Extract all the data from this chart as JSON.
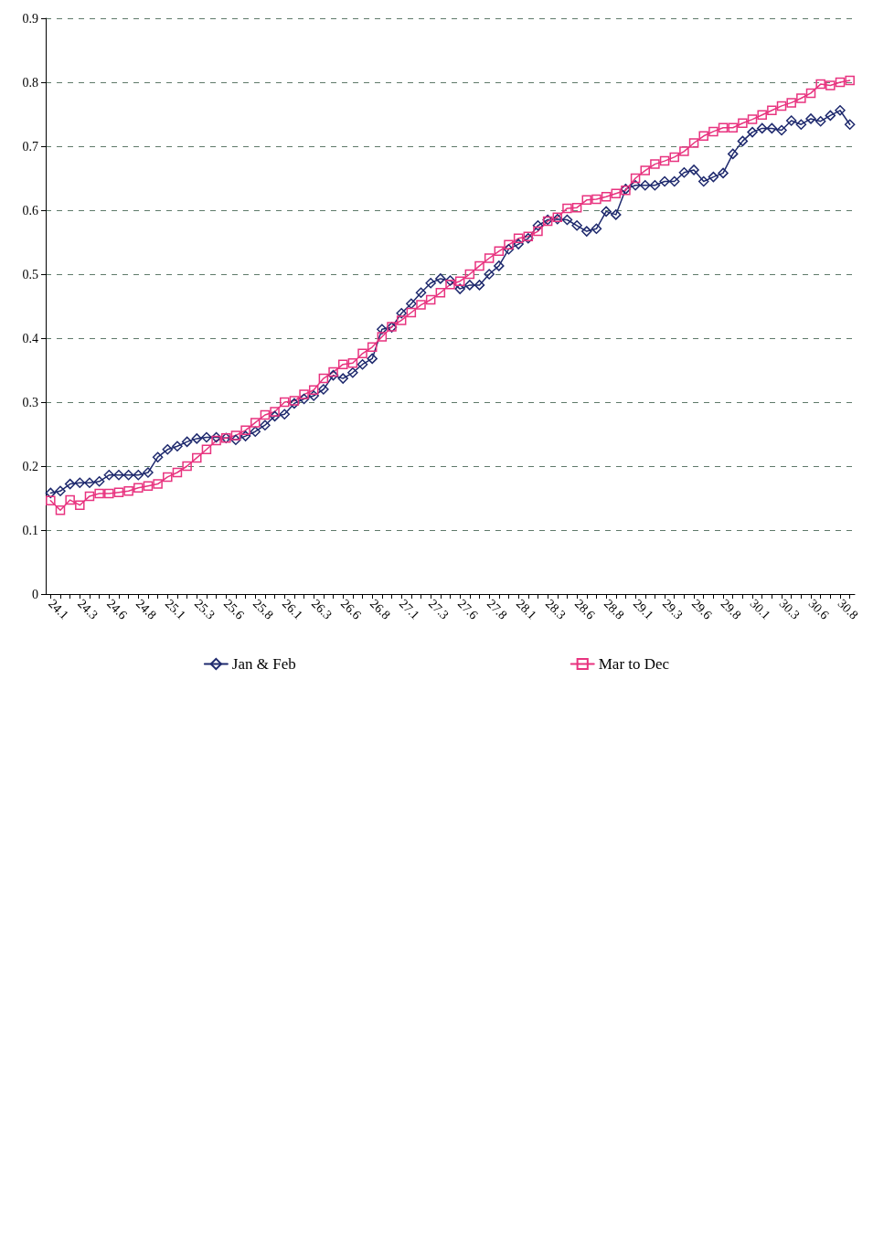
{
  "chart_data": {
    "type": "line",
    "categories": [
      "24.1",
      null,
      null,
      "24.3",
      null,
      null,
      "24.6",
      null,
      null,
      "24.8",
      null,
      null,
      "25.1",
      null,
      null,
      "25.3",
      null,
      null,
      "25.6",
      null,
      null,
      "25.8",
      null,
      null,
      "26.1",
      null,
      null,
      "26.3",
      null,
      null,
      "26.6",
      null,
      null,
      "26.8",
      null,
      null,
      "27.1",
      null,
      null,
      "27.3",
      null,
      null,
      "27.6",
      null,
      null,
      "27.8",
      null,
      null,
      "28.1",
      null,
      null,
      "28.3",
      null,
      null,
      "28.6",
      null,
      null,
      "28.8",
      null,
      null,
      "29.1",
      null,
      null,
      "29.3",
      null,
      null,
      "29.6",
      null,
      null,
      "29.8",
      null,
      null,
      "30.1",
      null,
      null,
      "30.3",
      null,
      null,
      "30.6",
      null,
      null,
      "30.8",
      null
    ],
    "series": [
      {
        "name": "Jan & Feb",
        "color": "#1f2a6e",
        "marker": "diamond",
        "values": [
          0.158,
          0.161,
          0.172,
          0.174,
          0.174,
          0.176,
          0.186,
          0.186,
          0.186,
          0.186,
          0.19,
          0.214,
          0.226,
          0.231,
          0.238,
          0.243,
          0.245,
          0.245,
          0.244,
          0.241,
          0.247,
          0.254,
          0.264,
          0.278,
          0.281,
          0.298,
          0.305,
          0.31,
          0.32,
          0.342,
          0.337,
          0.346,
          0.359,
          0.368,
          0.414,
          0.417,
          0.439,
          0.454,
          0.471,
          0.486,
          0.493,
          0.49,
          0.477,
          0.483,
          0.483,
          0.5,
          0.513,
          0.539,
          0.547,
          0.556,
          0.576,
          0.585,
          0.586,
          0.585,
          0.576,
          0.567,
          0.571,
          0.598,
          0.593,
          0.633,
          0.639,
          0.639,
          0.639,
          0.645,
          0.645,
          0.659,
          0.663,
          0.645,
          0.652,
          0.658,
          0.688,
          0.708,
          0.722,
          0.728,
          0.728,
          0.725,
          0.74,
          0.734,
          0.743,
          0.739,
          0.748,
          0.756,
          0.734
        ]
      },
      {
        "name": "Mar to Dec",
        "color": "#e8337f",
        "marker": "square",
        "values": [
          0.146,
          0.131,
          0.147,
          0.139,
          0.153,
          0.157,
          0.157,
          0.159,
          0.161,
          0.166,
          0.169,
          0.172,
          0.183,
          0.19,
          0.2,
          0.213,
          0.226,
          0.24,
          0.244,
          0.248,
          0.256,
          0.268,
          0.28,
          0.285,
          0.3,
          0.302,
          0.312,
          0.319,
          0.337,
          0.347,
          0.359,
          0.361,
          0.376,
          0.386,
          0.402,
          0.418,
          0.428,
          0.44,
          0.452,
          0.46,
          0.471,
          0.484,
          0.489,
          0.5,
          0.513,
          0.525,
          0.536,
          0.546,
          0.556,
          0.559,
          0.567,
          0.583,
          0.589,
          0.603,
          0.604,
          0.616,
          0.617,
          0.621,
          0.626,
          0.631,
          0.65,
          0.662,
          0.672,
          0.677,
          0.683,
          0.692,
          0.705,
          0.716,
          0.723,
          0.729,
          0.729,
          0.736,
          0.742,
          0.749,
          0.756,
          0.763,
          0.768,
          0.775,
          0.783,
          0.797,
          0.795,
          0.8,
          0.803
        ]
      }
    ],
    "ylim": [
      0,
      0.9
    ],
    "yticks": [
      0,
      0.1,
      0.2,
      0.3,
      0.4,
      0.5,
      0.6,
      0.7,
      0.8,
      0.9
    ],
    "grid": "y",
    "legend": "bottom",
    "line_style": "solid"
  }
}
